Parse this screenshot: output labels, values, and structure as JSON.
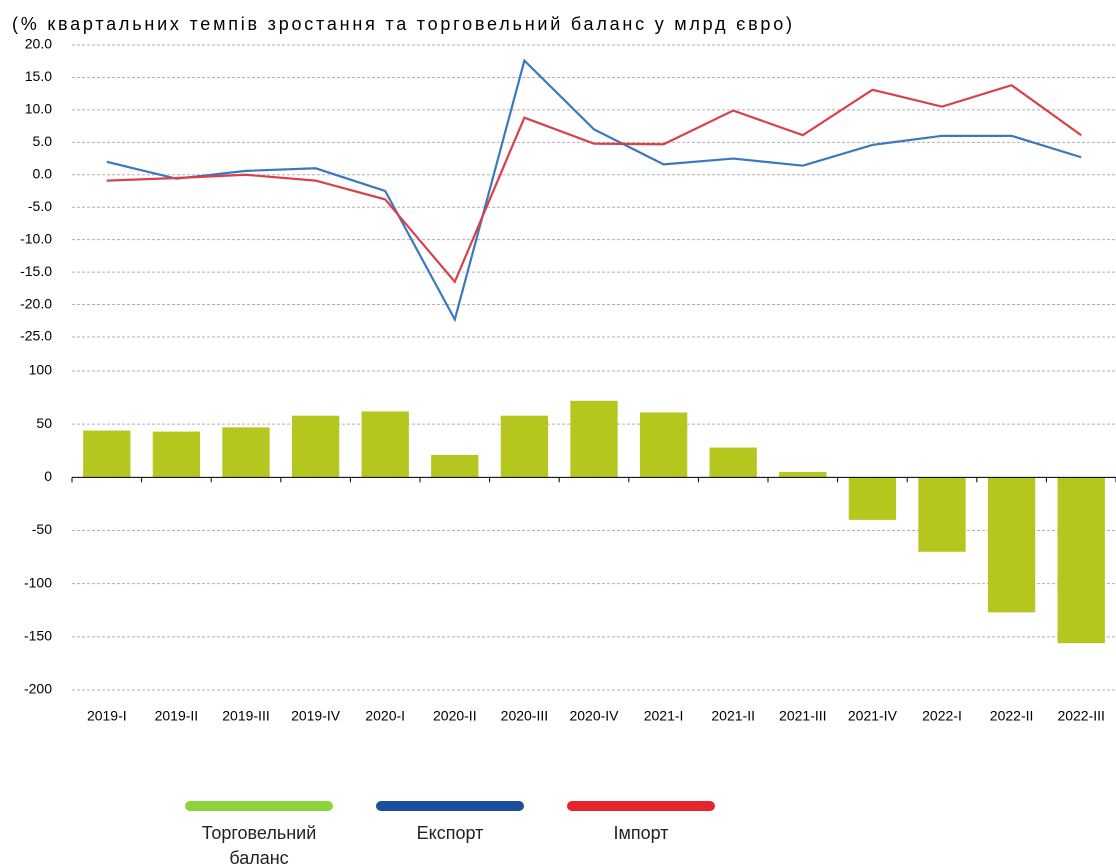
{
  "chart_data": [
    {
      "type": "line",
      "title": "(% квартальних темпів зростання та торговельний баланс у млрд євро)",
      "series": [
        {
          "name": "Експорт",
          "color": "#3a78bf",
          "legend_color": "#1a4f9e",
          "values": [
            2.0,
            -0.6,
            0.6,
            1.0,
            -2.5,
            -22.3,
            17.6,
            7.0,
            1.6,
            2.5,
            1.4,
            4.6,
            6.0,
            6.0,
            2.7
          ]
        },
        {
          "name": "Імпорт",
          "color": "#d9414a",
          "legend_color": "#e8242e",
          "values": [
            -0.9,
            -0.5,
            0.0,
            -0.9,
            -3.8,
            -16.5,
            8.8,
            4.8,
            4.7,
            9.9,
            6.1,
            13.1,
            10.5,
            13.8,
            6.1
          ]
        }
      ],
      "ylim": [
        -25,
        20
      ],
      "yticks": [
        {
          "value": 20,
          "label": "20.0"
        },
        {
          "value": 15,
          "label": "15.0"
        },
        {
          "value": 10,
          "label": "10.0"
        },
        {
          "value": 5,
          "label": "5.0"
        },
        {
          "value": 0,
          "label": "0.0"
        },
        {
          "value": -5,
          "label": "-5.0"
        },
        {
          "value": -10,
          "label": "-10.0"
        },
        {
          "value": -15,
          "label": "-15.0"
        },
        {
          "value": -20,
          "label": "-20.0"
        },
        {
          "value": -25,
          "label": "-25.0"
        }
      ],
      "grid": true
    },
    {
      "type": "bar",
      "categories": [
        "2019-I",
        "2019-II",
        "2019-III",
        "2019-IV",
        "2020-I",
        "2020-II",
        "2020-III",
        "2020-IV",
        "2021-I",
        "2021-II",
        "2021-III",
        "2021-IV",
        "2022-I",
        "2022-II",
        "2022-III"
      ],
      "series": [
        {
          "name": "Торговельний баланс",
          "color": "#b5c61e",
          "legend_color": "#8bd53a",
          "values": [
            44,
            43,
            47,
            58,
            62,
            21,
            58,
            72,
            61,
            28,
            5,
            -40,
            -70,
            -127,
            -156
          ]
        }
      ],
      "ylim": [
        -200,
        100
      ],
      "yticks": [
        100,
        50,
        0,
        -50,
        -100,
        -150,
        -200
      ],
      "grid": true
    }
  ]
}
